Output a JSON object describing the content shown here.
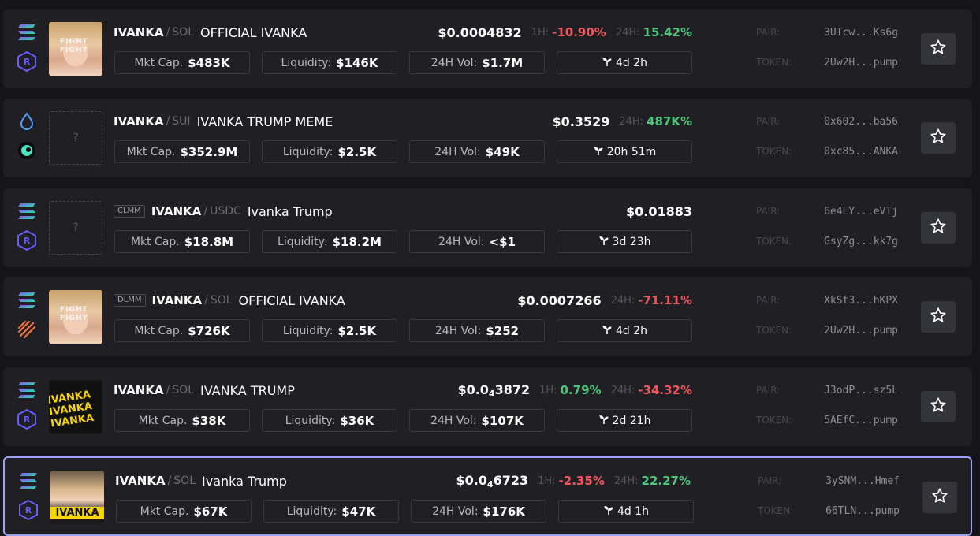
{
  "labels": {
    "mkt_cap": "Mkt Cap.",
    "liquidity": "Liquidity:",
    "vol24": "24H Vol:",
    "h1": "1H:",
    "h24": "24H:",
    "pair": "PAIR:",
    "token": "TOKEN:",
    "slash": "/"
  },
  "colors": {
    "positive": "#4cc77a",
    "negative": "#f0565c",
    "selected_border": "#9aa3f5"
  },
  "rows": [
    {
      "dex": "",
      "symbol": "IVANKA",
      "quote": "SOL",
      "name": "OFFICIAL IVANKA",
      "price": "$0.0004832",
      "price_sub": "",
      "price_rest": "",
      "h1": "-10.90%",
      "h24": "15.42%",
      "mkt_cap": "$483K",
      "liquidity": "$146K",
      "vol24": "$1.7M",
      "age": "4d 2h",
      "pair": "3UTcw...Ks6g",
      "token": "2Uw2H...pump",
      "chain_icon": "solana-icon",
      "dex_icon": "raydium-icon",
      "thumb": "photo",
      "thumb_text": "FIGHT FIGHT"
    },
    {
      "dex": "",
      "symbol": "IVANKA",
      "quote": "SUI",
      "name": "IVANKA TRUMP MEME",
      "price": "$0.3529",
      "price_sub": "",
      "price_rest": "",
      "h1": "",
      "h24": "487K%",
      "mkt_cap": "$352.9M",
      "liquidity": "$2.5K",
      "vol24": "$49K",
      "age": "20h 51m",
      "pair": "0x602...ba56",
      "token": "0xc85...ANKA",
      "chain_icon": "sui-icon",
      "dex_icon": "cetus-icon",
      "thumb": "placeholder",
      "thumb_text": "?"
    },
    {
      "dex": "CLMM",
      "symbol": "IVANKA",
      "quote": "USDC",
      "name": "Ivanka Trump",
      "price": "$0.01883",
      "price_sub": "",
      "price_rest": "",
      "h1": "",
      "h24": "",
      "mkt_cap": "$18.8M",
      "liquidity": "$18.2M",
      "vol24": "<$1",
      "age": "3d 23h",
      "pair": "6e4LY...eVTj",
      "token": "GsyZg...kk7g",
      "chain_icon": "solana-icon",
      "dex_icon": "raydium-icon",
      "thumb": "placeholder",
      "thumb_text": "?"
    },
    {
      "dex": "DLMM",
      "symbol": "IVANKA",
      "quote": "SOL",
      "name": "OFFICIAL IVANKA",
      "price": "$0.0007266",
      "price_sub": "",
      "price_rest": "",
      "h1": "",
      "h24": "-71.11%",
      "mkt_cap": "$726K",
      "liquidity": "$2.5K",
      "vol24": "$252",
      "age": "4d 2h",
      "pair": "XkSt3...hKPX",
      "token": "2Uw2H...pump",
      "chain_icon": "solana-icon",
      "dex_icon": "meteora-icon",
      "thumb": "photo",
      "thumb_text": "FIGHT FIGHT"
    },
    {
      "dex": "",
      "symbol": "IVANKA",
      "quote": "SOL",
      "name": "IVANKA TRUMP",
      "price": "$0.0",
      "price_sub": "4",
      "price_rest": "3872",
      "h1": "0.79%",
      "h24": "-34.32%",
      "mkt_cap": "$38K",
      "liquidity": "$36K",
      "vol24": "$107K",
      "age": "2d 21h",
      "pair": "J3odP...sz5L",
      "token": "5AEfC...pump",
      "chain_icon": "solana-icon",
      "dex_icon": "raydium-icon",
      "thumb": "yellow",
      "thumb_text": "IVANKA IVANKA IVANKA"
    },
    {
      "dex": "",
      "symbol": "IVANKA",
      "quote": "SOL",
      "name": "Ivanka Trump",
      "price": "$0.0",
      "price_sub": "4",
      "price_rest": "6723",
      "h1": "-2.35%",
      "h24": "22.27%",
      "mkt_cap": "$67K",
      "liquidity": "$47K",
      "vol24": "$176K",
      "age": "4d 1h",
      "pair": "3ySNM...Hmef",
      "token": "66TLN...pump",
      "chain_icon": "solana-icon",
      "dex_icon": "raydium-icon",
      "thumb": "blonde",
      "thumb_text": "IVANKA"
    }
  ]
}
